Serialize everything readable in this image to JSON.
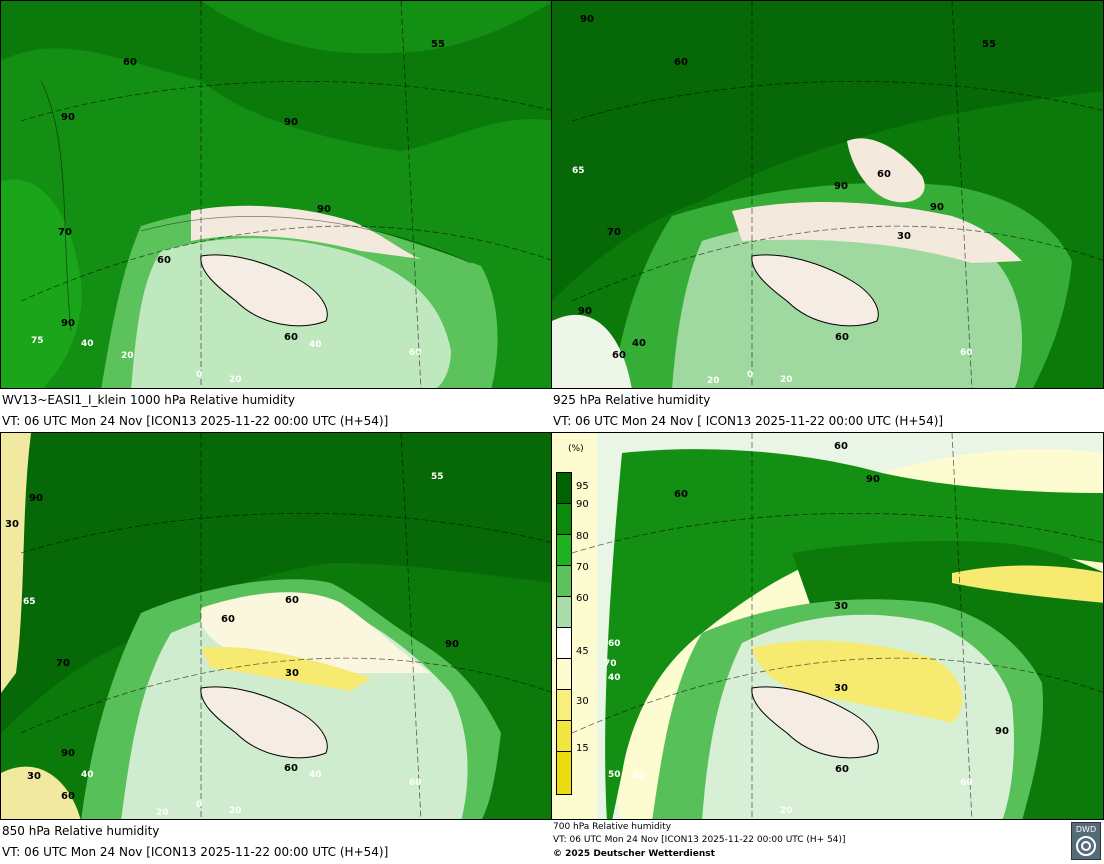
{
  "panels": [
    {
      "id": "p1000",
      "title": "WV13~EASI1_I_klein 1000 hPa Relative humidity",
      "valid": "VT: 06 UTC Mon  24 Nov [ICON13 2025-11-22 00:00 UTC  (H+54)]",
      "labels": [
        "55",
        "60",
        "90",
        "90",
        "90",
        "70",
        "60",
        "90",
        "75",
        "40",
        "60",
        "40",
        "60",
        "20",
        "0",
        "20"
      ]
    },
    {
      "id": "p925",
      "title": "925 hPa Relative humidity",
      "valid": "VT: 06 UTC Mon  24 Nov [ ICON13 2025-11-22 00:00 UTC  (H+54)]",
      "labels": [
        "90",
        "60",
        "55",
        "65",
        "90",
        "60",
        "90",
        "70",
        "30",
        "90",
        "60",
        "40",
        "60",
        "60",
        "20",
        "0",
        "20"
      ]
    },
    {
      "id": "p850",
      "title": "850 hPa  Relative humidity",
      "valid": "VT: 06 UTC Mon  24 Nov [ICON13 2025-11-22 00:00 UTC  (H+54)]",
      "labels": [
        "90",
        "55",
        "30",
        "65",
        "60",
        "60",
        "70",
        "90",
        "30",
        "90",
        "40",
        "60",
        "30",
        "60",
        "40",
        "60",
        "20",
        "0",
        "20"
      ]
    },
    {
      "id": "p700",
      "title": "700 hPa Relative humidity",
      "valid": "VT: 06 UTC Mon  24 Nov [ICON13 2025-11-22 00:00 UTC  (H+ 54)]",
      "copyright": "© 2025 Deutscher Wetterdienst",
      "labels": [
        "60",
        "90",
        "60",
        "30",
        "70",
        "30",
        "90",
        "40",
        "60",
        "60",
        "20",
        "50",
        "60",
        "40"
      ]
    }
  ],
  "legend": {
    "unit": "(%)",
    "entries": [
      {
        "value": "95",
        "color": "#006400"
      },
      {
        "value": "90",
        "color": "#0b8a0b"
      },
      {
        "value": "80",
        "color": "#1fb21f"
      },
      {
        "value": "70",
        "color": "#5cc25c"
      },
      {
        "value": "60",
        "color": "#a8dca8"
      },
      {
        "value": "",
        "color": "#ffffff"
      },
      {
        "value": "45",
        "color": "#fdfbd0"
      },
      {
        "value": "30",
        "color": "#f8f07a"
      },
      {
        "value": "15",
        "color": "#f2e640"
      },
      {
        "value": "",
        "color": "#ecdd10"
      }
    ]
  },
  "logo": "DWD"
}
